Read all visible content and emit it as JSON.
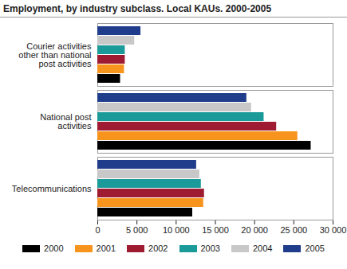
{
  "chart_data": {
    "type": "bar",
    "orientation": "horizontal",
    "title": "Employment, by industry subclass. Local KAUs. 2000-2005",
    "categories": [
      "Courier activities other than national post activities",
      "National post activities",
      "Telecommunications"
    ],
    "series": [
      {
        "name": "2000",
        "color": "#000000",
        "values": [
          2900,
          27200,
          12100
        ]
      },
      {
        "name": "2001",
        "color": "#f7941d",
        "values": [
          3400,
          25500,
          13500
        ]
      },
      {
        "name": "2002",
        "color": "#9e1b32",
        "values": [
          3500,
          22800,
          13600
        ]
      },
      {
        "name": "2003",
        "color": "#1b9a9a",
        "values": [
          3500,
          21200,
          13200
        ]
      },
      {
        "name": "2004",
        "color": "#c8c8c8",
        "values": [
          4700,
          19600,
          13000
        ]
      },
      {
        "name": "2005",
        "color": "#1f3d8a",
        "values": [
          5500,
          19000,
          12600
        ]
      }
    ],
    "xlim": [
      0,
      30000
    ],
    "xticks": [
      0,
      {
        "value": 5000,
        "label": "5 000"
      },
      {
        "value": 10000,
        "label": "10 000"
      },
      {
        "value": 15000,
        "label": "15 000"
      },
      {
        "value": 20000,
        "label": "20 000"
      },
      {
        "value": 25000,
        "label": "25 000"
      },
      {
        "value": 30000,
        "label": "30 000"
      }
    ],
    "grid": false,
    "legend": "bottom"
  }
}
